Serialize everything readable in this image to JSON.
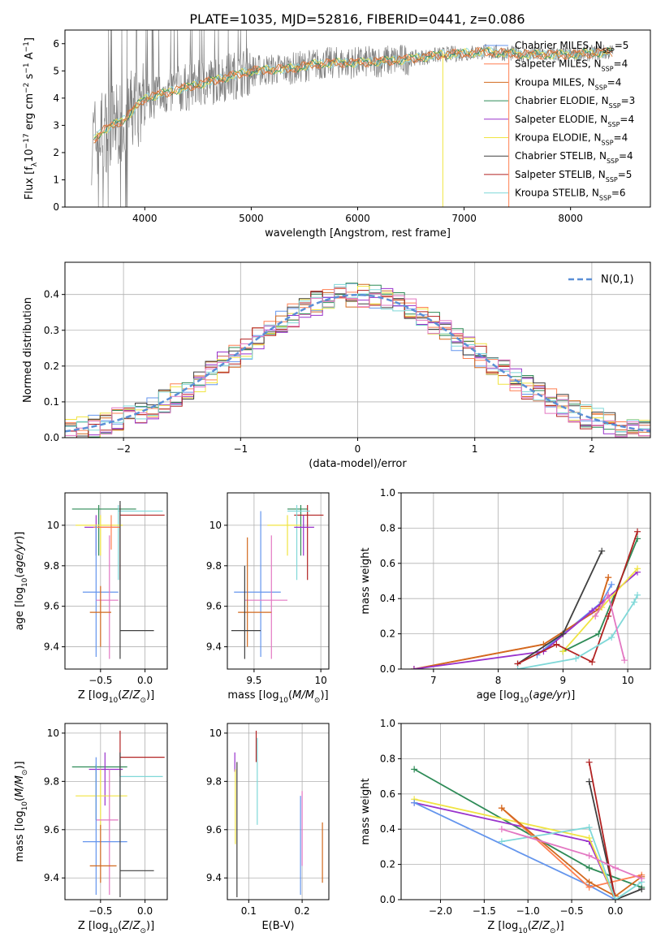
{
  "figure_title": "PLATE=1035, MJD=52816, FIBERID=0441, z=0.086",
  "colors": {
    "Chabrier MILES": "#6495ed",
    "Salpeter MILES": "#ff7f50",
    "Kroupa MILES": "#d2691e",
    "Chabrier ELODIE": "#2e8b57",
    "Salpeter ELODIE": "#9932cc",
    "Kroupa ELODIE": "#f0e442",
    "Chabrier STELIB": "#404040",
    "Salpeter STELIB": "#b22222",
    "Kroupa STELIB": "#7fd8d8",
    "pink": "#e377c2",
    "data": "#808080",
    "normal": "#5b8fd6"
  },
  "chart_data": [
    {
      "id": "spectrum",
      "type": "line",
      "xlabel": "wavelength [Angstrom, rest frame]",
      "ylabel": "Flux [f_λ 10^-17 erg cm^-2 s^-1 A^-1]",
      "xlim": [
        3250,
        8750
      ],
      "ylim": [
        0,
        6.5
      ],
      "xticks": [
        4000,
        5000,
        6000,
        7000,
        8000
      ],
      "yticks": [
        0,
        1,
        2,
        3,
        4,
        5,
        6
      ],
      "grid": false,
      "legend_placement": "right",
      "legend": [
        {
          "label": "Chabrier MILES, N",
          "n": "5",
          "color": "Chabrier MILES"
        },
        {
          "label": "Salpeter MILES, N",
          "n": "4",
          "color": "Salpeter MILES"
        },
        {
          "label": "Kroupa MILES, N",
          "n": "4",
          "color": "Kroupa MILES"
        },
        {
          "label": "Chabrier ELODIE, N",
          "n": "3",
          "color": "Chabrier ELODIE"
        },
        {
          "label": "Salpeter ELODIE, N",
          "n": "4",
          "color": "Salpeter ELODIE"
        },
        {
          "label": "Kroupa ELODIE, N",
          "n": "4",
          "color": "Kroupa ELODIE"
        },
        {
          "label": "Chabrier STELIB, N",
          "n": "4",
          "color": "Chabrier STELIB"
        },
        {
          "label": "Salpeter STELIB, N",
          "n": "5",
          "color": "Salpeter STELIB"
        },
        {
          "label": "Kroupa STELIB, N",
          "n": "6",
          "color": "Kroupa STELIB"
        }
      ],
      "continuum": {
        "x": [
          3500,
          3600,
          3700,
          3800,
          3900,
          4000,
          4200,
          4400,
          4600,
          4800,
          5000,
          5200,
          5400,
          5600,
          5800,
          6000,
          6200,
          6400,
          6600,
          6800,
          7000,
          7200,
          7400,
          7600,
          7800,
          8000,
          8200,
          8400
        ],
        "y": [
          2.4,
          2.8,
          3.0,
          3.2,
          3.6,
          4.0,
          4.2,
          4.4,
          4.6,
          4.8,
          5.0,
          5.05,
          5.1,
          5.25,
          5.3,
          5.3,
          5.35,
          5.4,
          5.5,
          5.6,
          5.65,
          5.7,
          5.65,
          5.6,
          5.6,
          5.6,
          5.65,
          5.7
        ]
      }
    },
    {
      "id": "residuals",
      "type": "histogram",
      "xlabel": "(data-model)/error",
      "ylabel": "Normed distribution",
      "xlim": [
        -2.5,
        2.5
      ],
      "ylim": [
        0,
        0.49
      ],
      "xticks": [
        -2,
        -1,
        0,
        1,
        2
      ],
      "yticks": [
        0.0,
        0.1,
        0.2,
        0.3,
        0.4
      ],
      "bins": 50,
      "grid": true,
      "legend": "N(0,1)",
      "legend_placement": "top-right"
    },
    {
      "id": "age_vs_Z",
      "type": "errorbar",
      "xlabel": "Z [log10(Z/Z⊙)]",
      "ylabel": "age [log10(age/yr)]",
      "xlim": [
        -0.9,
        0.25
      ],
      "ylim": [
        9.29,
        10.16
      ],
      "xticks": [
        -0.5,
        0.0
      ],
      "yticks": [
        9.4,
        9.6,
        9.8,
        10.0
      ],
      "points": [
        {
          "c": "Chabrier ELODIE",
          "x": -0.52,
          "xe": [
            -0.82,
            -0.1
          ],
          "y": 10.08,
          "ye": [
            9.85,
            10.1
          ]
        },
        {
          "c": "Salpeter STELIB",
          "x": -0.28,
          "xe": [
            -0.28,
            0.22
          ],
          "y": 10.05,
          "ye": [
            9.73,
            10.1
          ]
        },
        {
          "c": "Kroupa STELIB",
          "x": -0.3,
          "xe": [
            -0.3,
            0.2
          ],
          "y": 10.07,
          "ye": [
            9.73,
            10.1
          ]
        },
        {
          "c": "Salpeter ELODIE",
          "x": -0.55,
          "xe": [
            -0.68,
            -0.3
          ],
          "y": 9.99,
          "ye": [
            9.85,
            10.05
          ]
        },
        {
          "c": "Kroupa ELODIE",
          "x": -0.5,
          "xe": [
            -0.78,
            -0.25
          ],
          "y": 10.0,
          "ye": [
            9.85,
            10.05
          ]
        },
        {
          "c": "Salpeter MILES",
          "x": -0.38,
          "xe": [
            -0.58,
            -0.28
          ],
          "y": 9.99,
          "ye": [
            9.88,
            10.05
          ]
        },
        {
          "c": "Chabrier MILES",
          "x": -0.55,
          "xe": [
            -0.7,
            -0.3
          ],
          "y": 9.67,
          "ye": [
            9.35,
            10.0
          ]
        },
        {
          "c": "pink",
          "x": -0.4,
          "xe": [
            -0.55,
            -0.3
          ],
          "y": 9.63,
          "ye": [
            9.34,
            9.95
          ]
        },
        {
          "c": "Kroupa MILES",
          "x": -0.5,
          "xe": [
            -0.62,
            -0.38
          ],
          "y": 9.57,
          "ye": [
            9.4,
            9.7
          ]
        },
        {
          "c": "Chabrier STELIB",
          "x": -0.28,
          "xe": [
            -0.28,
            0.1
          ],
          "y": 9.48,
          "ye": [
            9.34,
            10.12
          ]
        }
      ]
    },
    {
      "id": "age_vs_mass",
      "type": "errorbar",
      "xlabel": "mass [log10(M/M⊙)]",
      "ylabel": "",
      "xlim": [
        9.3,
        10.06
      ],
      "ylim": [
        9.29,
        10.16
      ],
      "xticks": [
        9.5,
        10.0
      ],
      "yticks": [
        9.4,
        9.6,
        9.8,
        10.0
      ],
      "points": [
        {
          "c": "Chabrier ELODIE",
          "x": 9.85,
          "xe": [
            9.75,
            9.9
          ],
          "y": 10.08,
          "ye": [
            9.85,
            10.1
          ]
        },
        {
          "c": "Salpeter STELIB",
          "x": 9.9,
          "xe": [
            9.8,
            10.02
          ],
          "y": 10.05,
          "ye": [
            9.73,
            10.1
          ]
        },
        {
          "c": "Kroupa STELIB",
          "x": 9.82,
          "xe": [
            9.75,
            9.92
          ],
          "y": 10.07,
          "ye": [
            9.73,
            10.1
          ]
        },
        {
          "c": "Salpeter ELODIE",
          "x": 9.87,
          "xe": [
            9.8,
            9.95
          ],
          "y": 9.99,
          "ye": [
            9.85,
            10.05
          ]
        },
        {
          "c": "Kroupa ELODIE",
          "x": 9.75,
          "xe": [
            9.6,
            9.85
          ],
          "y": 10.0,
          "ye": [
            9.85,
            10.05
          ]
        },
        {
          "c": "Chabrier MILES",
          "x": 9.55,
          "xe": [
            9.35,
            9.7
          ],
          "y": 9.67,
          "ye": [
            9.35,
            10.07
          ]
        },
        {
          "c": "pink",
          "x": 9.63,
          "xe": [
            9.43,
            9.75
          ],
          "y": 9.63,
          "ye": [
            9.34,
            9.95
          ]
        },
        {
          "c": "Kroupa MILES",
          "x": 9.45,
          "xe": [
            9.38,
            9.63
          ],
          "y": 9.57,
          "ye": [
            9.4,
            9.94
          ]
        },
        {
          "c": "Chabrier STELIB",
          "x": 9.43,
          "xe": [
            9.33,
            9.55
          ],
          "y": 9.48,
          "ye": [
            9.34,
            9.8
          ]
        }
      ]
    },
    {
      "id": "mass_weight_vs_age",
      "type": "line",
      "xlabel": "age [log10(age/yr)]",
      "ylabel": "mass weight",
      "xlim": [
        6.5,
        10.35
      ],
      "ylim": [
        0,
        1.0
      ],
      "xticks": [
        7,
        8,
        9,
        10
      ],
      "yticks": [
        0.0,
        0.2,
        0.4,
        0.6,
        0.8,
        1.0
      ],
      "grid": true,
      "series": [
        {
          "c": "Chabrier MILES",
          "x": [
            8.6,
            9.6,
            9.75
          ],
          "y": [
            0.08,
            0.38,
            0.48
          ]
        },
        {
          "c": "Salpeter MILES",
          "x": [
            6.7,
            8.7,
            9.55,
            9.7
          ],
          "y": [
            0.0,
            0.14,
            0.34,
            0.52
          ]
        },
        {
          "c": "Kroupa MILES",
          "x": [
            6.7,
            8.7,
            9.55,
            9.7
          ],
          "y": [
            0.0,
            0.14,
            0.34,
            0.52
          ]
        },
        {
          "c": "Chabrier ELODIE",
          "x": [
            9.0,
            9.55,
            10.15
          ],
          "y": [
            0.1,
            0.2,
            0.74
          ]
        },
        {
          "c": "Salpeter ELODIE",
          "x": [
            6.7,
            8.7,
            9.45,
            10.15
          ],
          "y": [
            0.0,
            0.1,
            0.33,
            0.55
          ]
        },
        {
          "c": "Kroupa ELODIE",
          "x": [
            9.0,
            9.6,
            10.15
          ],
          "y": [
            0.1,
            0.35,
            0.57
          ]
        },
        {
          "c": "Chabrier STELIB",
          "x": [
            8.3,
            9.0,
            9.6
          ],
          "y": [
            0.03,
            0.2,
            0.67
          ]
        },
        {
          "c": "Salpeter STELIB",
          "x": [
            8.3,
            8.9,
            9.45,
            9.7,
            10.15
          ],
          "y": [
            0.03,
            0.14,
            0.04,
            0.3,
            0.78
          ]
        },
        {
          "c": "Kroupa STELIB",
          "x": [
            8.3,
            9.2,
            9.75,
            10.1,
            10.15
          ],
          "y": [
            0.0,
            0.06,
            0.18,
            0.38,
            0.42
          ]
        },
        {
          "c": "pink",
          "x": [
            9.5,
            9.7,
            9.95
          ],
          "y": [
            0.3,
            0.42,
            0.05
          ]
        }
      ]
    },
    {
      "id": "mass_vs_Z",
      "type": "errorbar",
      "xlabel": "Z [log10(Z/Z⊙)]",
      "ylabel": "mass [log10(M/M⊙)]",
      "xlim": [
        -0.9,
        0.25
      ],
      "ylim": [
        9.31,
        10.04
      ],
      "xticks": [
        -0.5,
        0.0
      ],
      "yticks": [
        9.4,
        9.6,
        9.8,
        10.0
      ],
      "points": [
        {
          "c": "Salpeter STELIB",
          "x": -0.28,
          "xe": [
            -0.28,
            0.22
          ],
          "y": 9.9,
          "ye": [
            9.82,
            10.01
          ]
        },
        {
          "c": "Chabrier ELODIE",
          "x": -0.55,
          "xe": [
            -0.82,
            -0.2
          ],
          "y": 9.86,
          "ye": [
            9.64,
            9.87
          ]
        },
        {
          "c": "Salpeter ELODIE",
          "x": -0.45,
          "xe": [
            -0.63,
            -0.25
          ],
          "y": 9.85,
          "ye": [
            9.7,
            9.92
          ]
        },
        {
          "c": "Kroupa STELIB",
          "x": -0.28,
          "xe": [
            -0.28,
            0.2
          ],
          "y": 9.82,
          "ye": [
            9.6,
            9.88
          ]
        },
        {
          "c": "Kroupa ELODIE",
          "x": -0.5,
          "xe": [
            -0.78,
            -0.2
          ],
          "y": 9.74,
          "ye": [
            9.6,
            9.85
          ]
        },
        {
          "c": "pink",
          "x": -0.4,
          "xe": [
            -0.55,
            -0.3
          ],
          "y": 9.64,
          "ye": [
            9.33,
            9.85
          ]
        },
        {
          "c": "Chabrier MILES",
          "x": -0.55,
          "xe": [
            -0.7,
            -0.2
          ],
          "y": 9.55,
          "ye": [
            9.33,
            9.9
          ]
        },
        {
          "c": "Kroupa MILES",
          "x": -0.5,
          "xe": [
            -0.62,
            -0.32
          ],
          "y": 9.45,
          "ye": [
            9.38,
            9.62
          ]
        },
        {
          "c": "Chabrier STELIB",
          "x": -0.28,
          "xe": [
            -0.28,
            0.1
          ],
          "y": 9.43,
          "ye": [
            9.32,
            9.92
          ]
        }
      ]
    },
    {
      "id": "mass_vs_ebv",
      "type": "errorbar",
      "xlabel": "E(B-V)",
      "ylabel": "",
      "xlim": [
        0.06,
        0.25
      ],
      "ylim": [
        9.31,
        10.04
      ],
      "xticks": [
        0.1,
        0.2
      ],
      "yticks": [
        9.4,
        9.6,
        9.8,
        10.0
      ],
      "points": [
        {
          "c": "Salpeter ELODIE",
          "x": 0.074,
          "ye": [
            9.84,
            9.92
          ]
        },
        {
          "c": "Kroupa ELODIE",
          "x": 0.075,
          "ye": [
            9.54,
            9.85
          ]
        },
        {
          "c": "Chabrier STELIB",
          "x": 0.078,
          "ye": [
            9.32,
            9.88
          ]
        },
        {
          "c": "Salpeter STELIB",
          "x": 0.114,
          "ye": [
            9.88,
            10.01
          ]
        },
        {
          "c": "Kroupa STELIB",
          "x": 0.116,
          "ye": [
            9.62,
            9.98
          ]
        },
        {
          "c": "Chabrier MILES",
          "x": 0.197,
          "ye": [
            9.33,
            9.74
          ]
        },
        {
          "c": "pink",
          "x": 0.2,
          "ye": [
            9.45,
            9.76
          ]
        },
        {
          "c": "Kroupa MILES",
          "x": 0.238,
          "ye": [
            9.38,
            9.63
          ]
        }
      ]
    },
    {
      "id": "mass_weight_vs_Z",
      "type": "line",
      "xlabel": "Z [log10(Z/Z⊙)]",
      "ylabel": "mass weight",
      "xlim": [
        -2.45,
        0.4
      ],
      "ylim": [
        0,
        1.0
      ],
      "xticks": [
        -2.0,
        -1.5,
        -1.0,
        -0.5,
        0.0
      ],
      "yticks": [
        0.0,
        0.2,
        0.4,
        0.6,
        0.8,
        1.0
      ],
      "grid": true,
      "series": [
        {
          "c": "Chabrier ELODIE",
          "x": [
            -2.3,
            -0.3,
            0.3
          ],
          "y": [
            0.74,
            0.18,
            0.07
          ]
        },
        {
          "c": "Salpeter ELODIE",
          "x": [
            -2.3,
            -0.3,
            0.0
          ],
          "y": [
            0.55,
            0.33,
            0.0
          ]
        },
        {
          "c": "Kroupa ELODIE",
          "x": [
            -2.3,
            -0.3,
            0.0
          ],
          "y": [
            0.57,
            0.35,
            0.0
          ]
        },
        {
          "c": "Chabrier MILES",
          "x": [
            -2.3,
            -0.3,
            0.0
          ],
          "y": [
            0.55,
            0.08,
            0.0
          ]
        },
        {
          "c": "Salpeter MILES",
          "x": [
            -1.3,
            -0.3,
            0.3
          ],
          "y": [
            0.52,
            0.07,
            0.14
          ]
        },
        {
          "c": "Kroupa MILES",
          "x": [
            -1.3,
            -0.3,
            0.0,
            0.3
          ],
          "y": [
            0.52,
            0.1,
            0.02,
            0.13
          ]
        },
        {
          "c": "Chabrier STELIB",
          "x": [
            -0.3,
            0.0,
            0.3
          ],
          "y": [
            0.67,
            0.0,
            0.06
          ]
        },
        {
          "c": "Salpeter STELIB",
          "x": [
            -0.3,
            0.0
          ],
          "y": [
            0.78,
            0.0
          ]
        },
        {
          "c": "Kroupa STELIB",
          "x": [
            -1.3,
            -0.3,
            0.0,
            0.3
          ],
          "y": [
            0.33,
            0.41,
            0.0,
            0.1
          ]
        },
        {
          "c": "pink",
          "x": [
            -1.3,
            -0.3,
            0.0,
            0.3
          ],
          "y": [
            0.4,
            0.25,
            0.18,
            0.12
          ]
        }
      ]
    }
  ]
}
